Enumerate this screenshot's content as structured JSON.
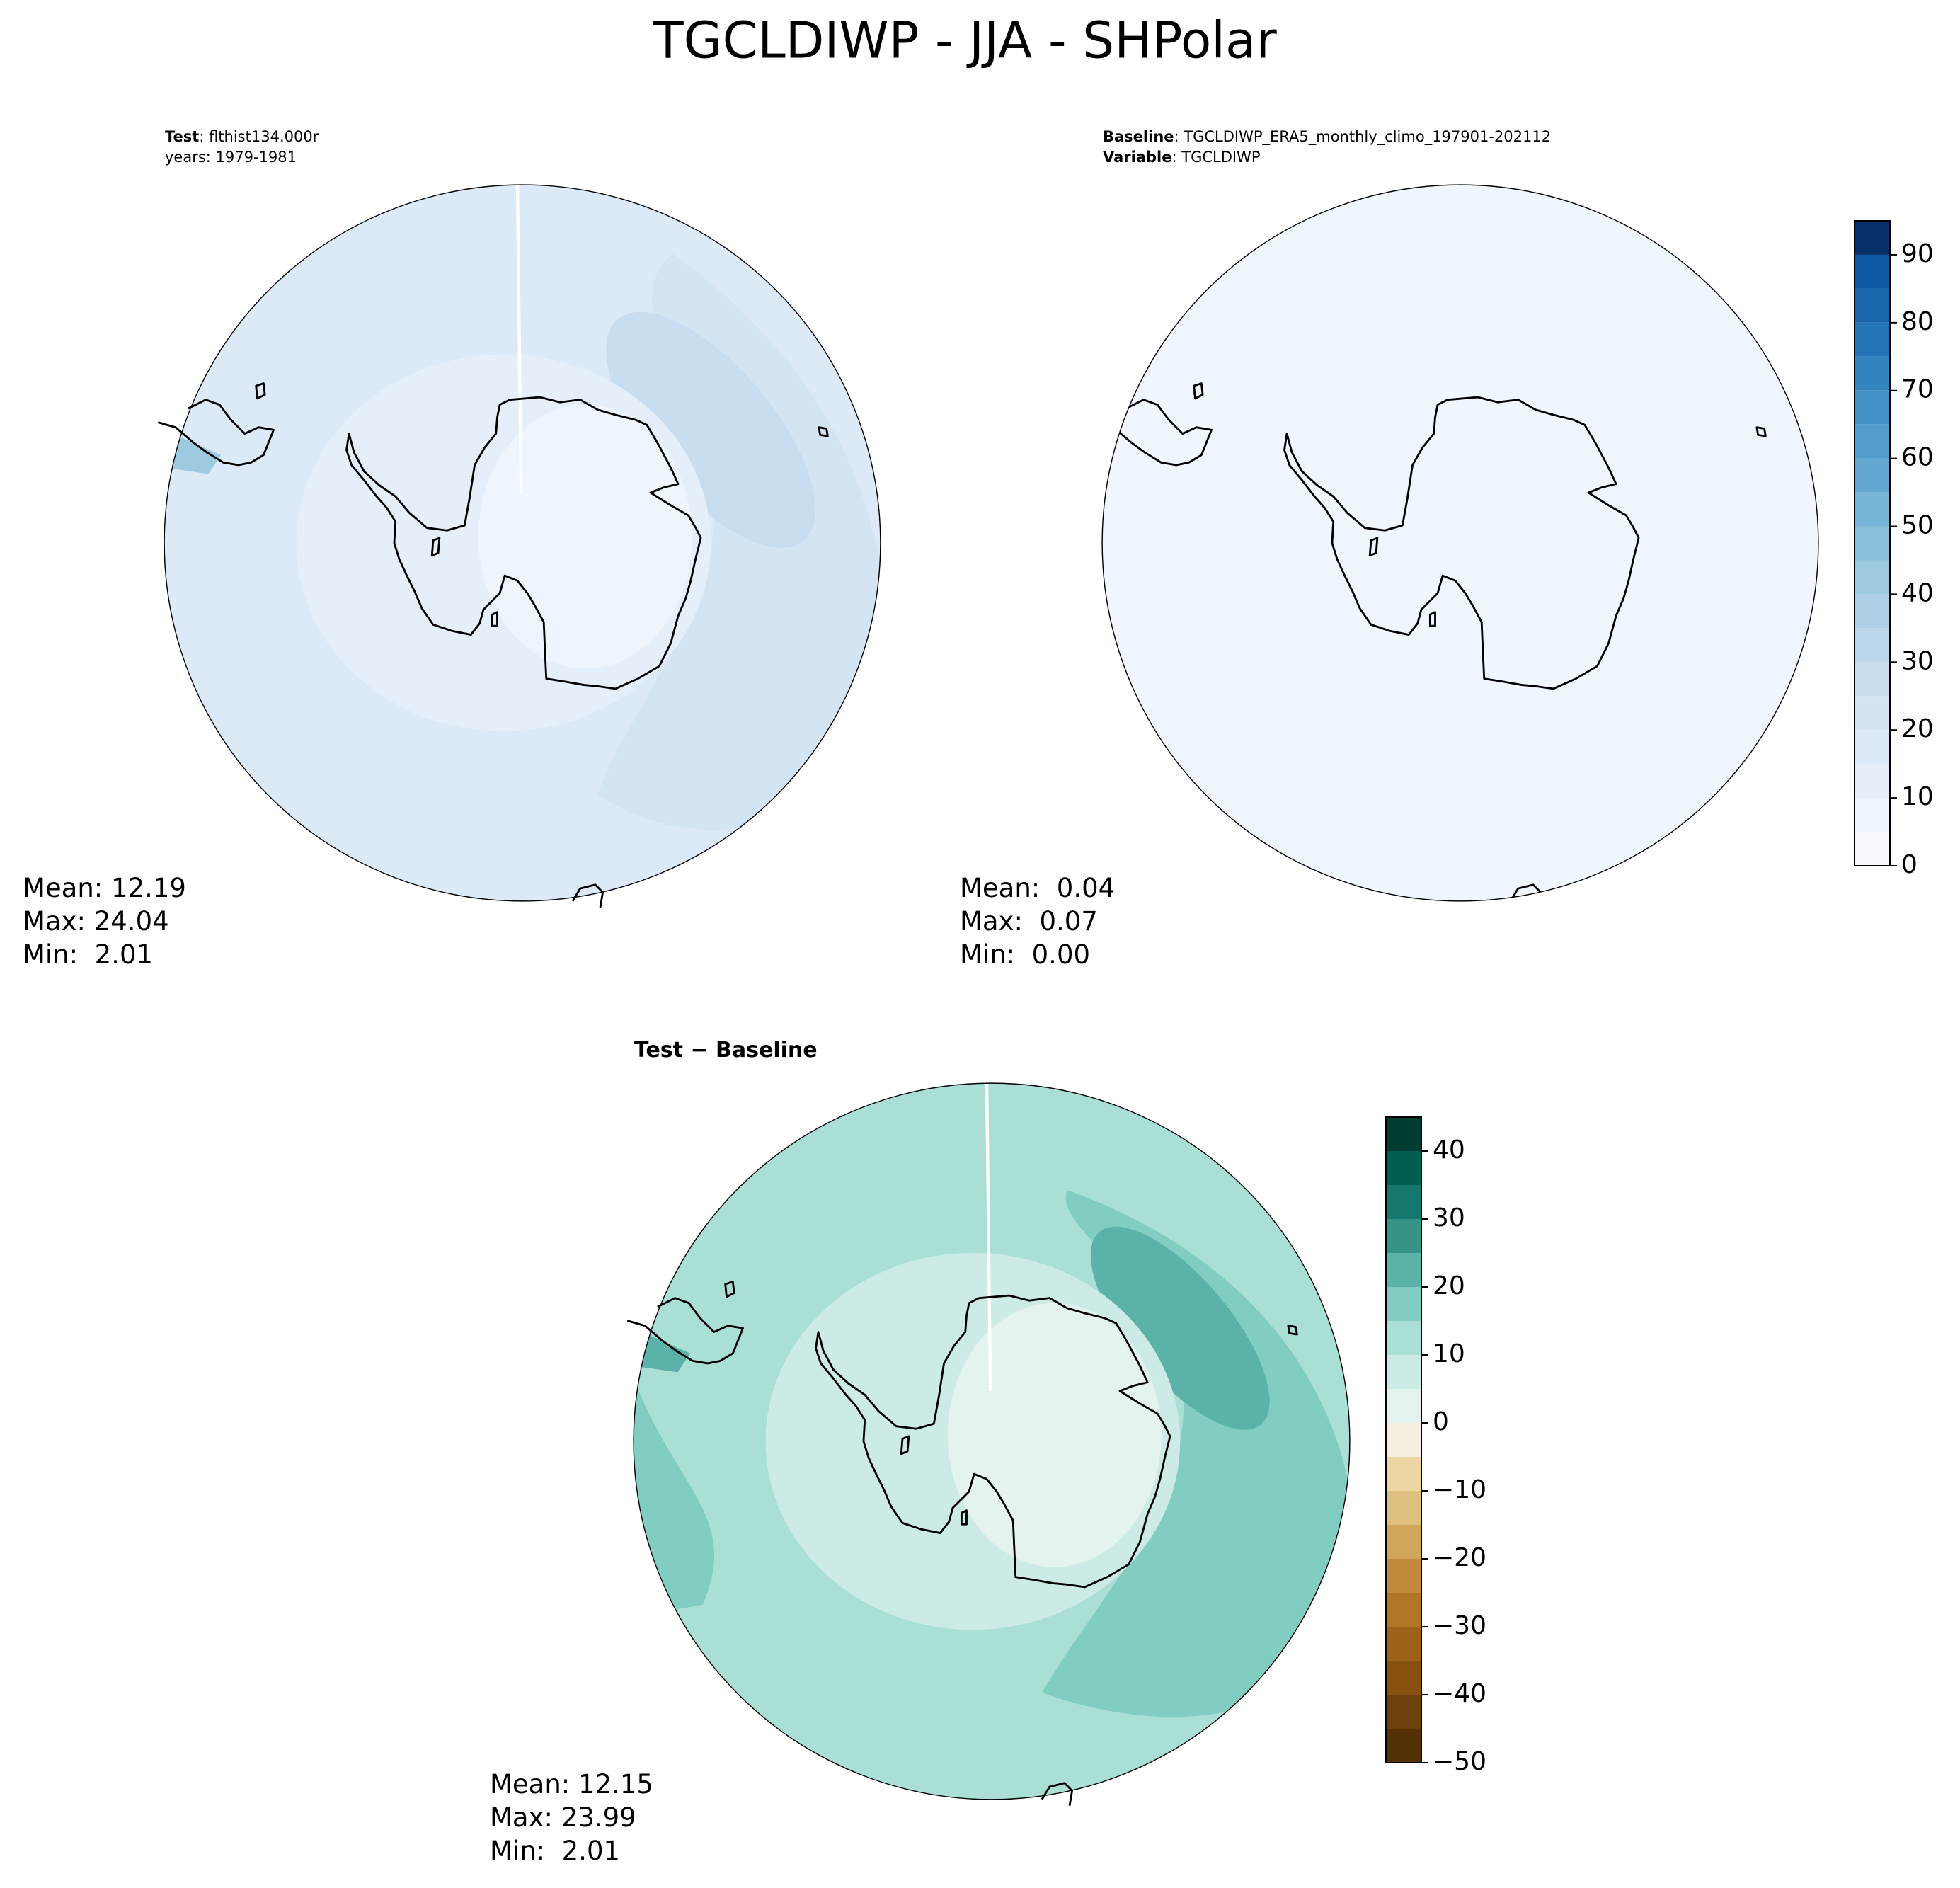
{
  "title": "TGCLDIWP - JJA - SHPolar",
  "panels": [
    {
      "header": [
        {
          "bold": "Test",
          "text": ": flthist134.000r"
        },
        {
          "text": "years: 1979-1981"
        }
      ],
      "stats": [
        "Mean: 12.19",
        "Max: 24.04",
        "Min:  2.01"
      ]
    },
    {
      "header": [
        {
          "bold": "Baseline",
          "text": ": TGCLDIWP_ERA5_monthly_climo_197901-202112"
        },
        {
          "bold": "Variable",
          "text": ": TGCLDIWP"
        }
      ],
      "stats": [
        "Mean:  0.04",
        "Max:  0.07",
        "Min:  0.00"
      ]
    },
    {
      "header": [
        {
          "bold": "Test − Baseline"
        }
      ],
      "stats": [
        "Mean: 12.15",
        "Max: 23.99",
        "Min:  2.01"
      ]
    }
  ],
  "colorbars": [
    {
      "levels": [
        0,
        5,
        10,
        15,
        20,
        25,
        30,
        35,
        40,
        45,
        50,
        55,
        60,
        65,
        70,
        75,
        80,
        85,
        90,
        95
      ],
      "colors": [
        "#f7fbff",
        "#eef5fc",
        "#e5eff9",
        "#dce9f6",
        "#d3e4f3",
        "#c9ddf0",
        "#bcd7eb",
        "#aed1e7",
        "#9ecae1",
        "#8bc0dd",
        "#77b5d9",
        "#63a8d3",
        "#529dcc",
        "#4290c5",
        "#3383be",
        "#2474b7",
        "#1966ad",
        "#0e58a2",
        "#08306b"
      ],
      "ticks": [
        0,
        10,
        20,
        30,
        40,
        50,
        60,
        70,
        80,
        90
      ]
    },
    {
      "levels": [
        -50,
        -45,
        -40,
        -35,
        -30,
        -25,
        -20,
        -15,
        -10,
        -5,
        0,
        5,
        10,
        15,
        20,
        25,
        30,
        35,
        40,
        45
      ],
      "colors": [
        "#543005",
        "#6d400a",
        "#87500f",
        "#9d6118",
        "#b27425",
        "#c28b3c",
        "#d2a65a",
        "#e0c07f",
        "#ecd7a2",
        "#f5efe2",
        "#e4f2f0",
        "#cdebe6",
        "#aadfd6",
        "#82cdc1",
        "#5bb2a8",
        "#359388",
        "#16776f",
        "#005e52",
        "#003c30"
      ],
      "ticks": [
        {
          "value": -50,
          "label": "−50"
        },
        {
          "value": -40,
          "label": "−40"
        },
        {
          "value": -30,
          "label": "−30"
        },
        {
          "value": -20,
          "label": "−20"
        },
        {
          "value": -10,
          "label": "−10"
        },
        0,
        10,
        20,
        30,
        40
      ]
    }
  ]
}
